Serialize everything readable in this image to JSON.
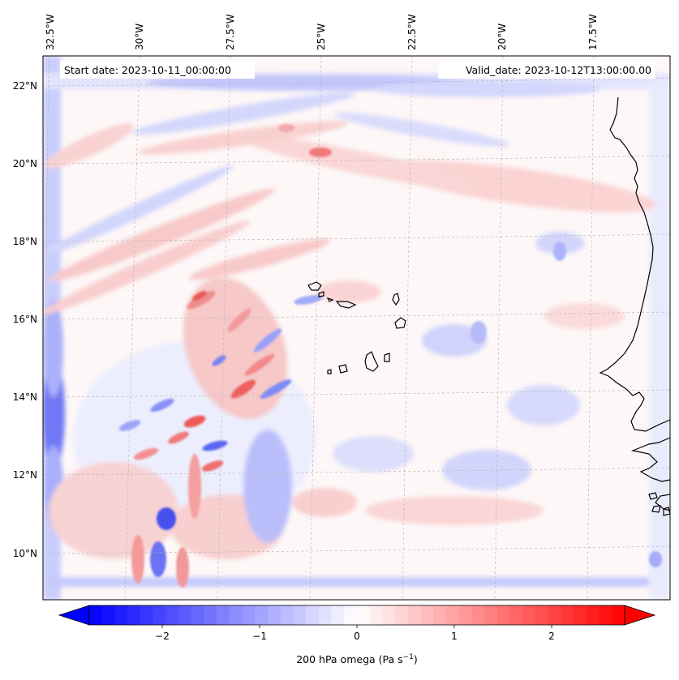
{
  "map": {
    "start_date": "Start date: 2023-10-11_00:00:00",
    "valid_date": "Valid_date: 2023-10-12T13:00:00.00",
    "lon_labels": [
      "32.5°W",
      "30°W",
      "27.5°W",
      "25°W",
      "22.5°W",
      "20°W",
      "17.5°W"
    ],
    "lat_labels": [
      "22°N",
      "20°N",
      "18°N",
      "16°N",
      "14°N",
      "12°N",
      "10°N"
    ],
    "field": "200 hPa omega",
    "region": "Eastern tropical North Atlantic, Cabo Verde islands and West African coast"
  },
  "colorbar": {
    "label_main": "200 hPa omega (Pa s",
    "label_exp": "−1",
    "label_end": ")",
    "ticks": [
      "−2",
      "−1",
      "0",
      "1",
      "2"
    ],
    "tick_values": [
      -2,
      -1,
      0,
      1,
      2
    ],
    "range": [
      -2.75,
      2.75
    ],
    "extend": "both",
    "colormap": "bwr",
    "low_color": "#0000ff",
    "mid_color": "#ffffff",
    "high_color": "#ff0000"
  }
}
